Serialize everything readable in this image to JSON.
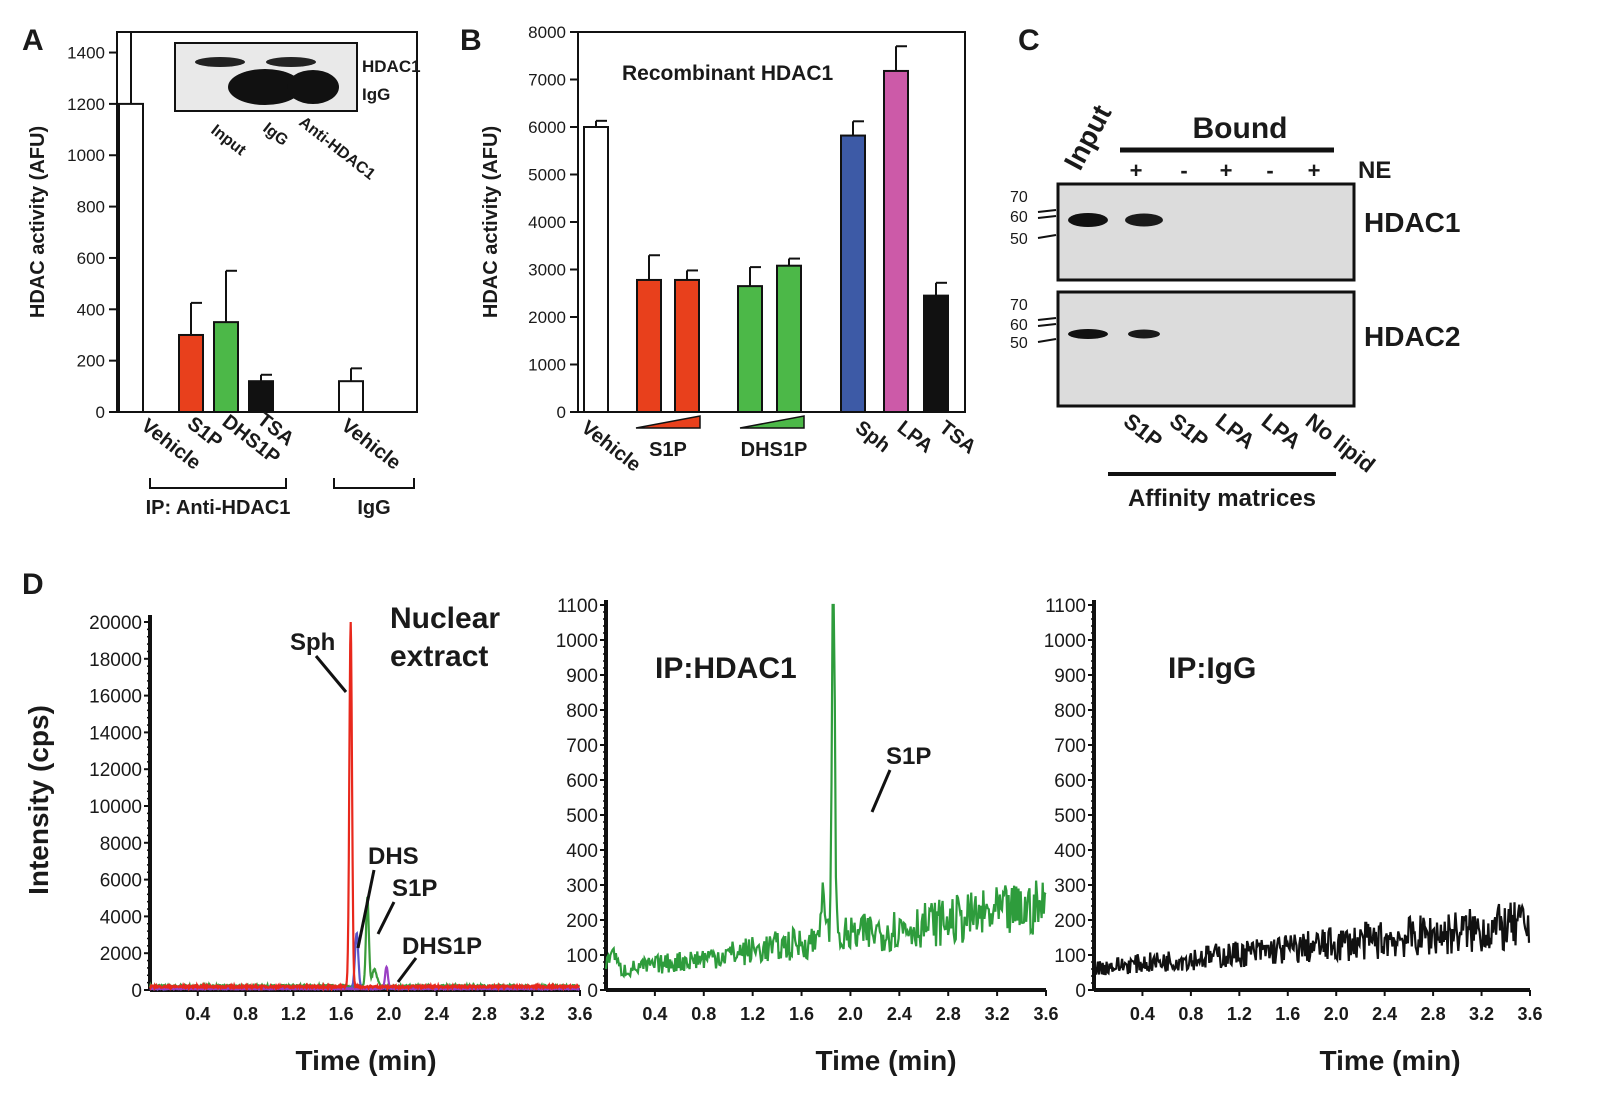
{
  "panels": {
    "A": {
      "letter": "A",
      "ylabel": "HDAC activity (AFU)",
      "yticks": [
        0,
        200,
        400,
        600,
        800,
        1000,
        1200,
        1400
      ],
      "ylim": [
        0,
        1480
      ],
      "bars": [
        {
          "label": "Vehicle",
          "value": 1200,
          "err": 1480,
          "color": "#ffffff"
        },
        {
          "label": "S1P",
          "value": 300,
          "err": 425,
          "color": "#e8401c"
        },
        {
          "label": "DHS1P",
          "value": 350,
          "err": 550,
          "color": "#4cb848"
        },
        {
          "label": "TSA",
          "value": 120,
          "err": 145,
          "color": "#111111"
        },
        {
          "label": "Vehicle",
          "value": 120,
          "err": 170,
          "color": "#ffffff"
        }
      ],
      "group1_label": "IP: Anti-HDAC1",
      "group2_label": "IgG",
      "inset": {
        "band1": "HDAC1",
        "band2": "IgG",
        "lanes": [
          "Input",
          "IgG",
          "Anti-HDAC1"
        ]
      }
    },
    "B": {
      "letter": "B",
      "title": "Recombinant  HDAC1",
      "ylabel": "HDAC activity (AFU)",
      "yticks": [
        0,
        1000,
        2000,
        3000,
        4000,
        5000,
        6000,
        7000,
        8000
      ],
      "ylim": [
        0,
        8000
      ],
      "bars": [
        {
          "label": "Vehicle",
          "value": 6000,
          "err": 6130,
          "color": "#ffffff"
        },
        {
          "label": "",
          "value": 2780,
          "err": 3300,
          "color": "#e8401c"
        },
        {
          "label": "",
          "value": 2780,
          "err": 2980,
          "color": "#e8401c"
        },
        {
          "label": "",
          "value": 2650,
          "err": 3050,
          "color": "#4cb848"
        },
        {
          "label": "",
          "value": 3080,
          "err": 3230,
          "color": "#4cb848"
        },
        {
          "label": "Sph",
          "value": 5820,
          "err": 6120,
          "color": "#3d5aa6"
        },
        {
          "label": "LPA",
          "value": 7180,
          "err": 7700,
          "color": "#cc5aa8"
        },
        {
          "label": "TSA",
          "value": 2450,
          "err": 2720,
          "color": "#111111"
        }
      ],
      "group_s1p": "S1P",
      "group_dhs1p": "DHS1P"
    },
    "C": {
      "letter": "C",
      "bound": "Bound",
      "ne": "NE",
      "input": "Input",
      "signs": [
        "+",
        "-",
        "+",
        "-",
        "+"
      ],
      "blot1": "HDAC1",
      "blot2": "HDAC2",
      "mw": [
        "70",
        "60",
        "50"
      ],
      "lanes": [
        "S1P",
        "S1P",
        "LPA",
        "LPA",
        "No lipid"
      ],
      "matrices": "Affinity matrices"
    },
    "D": {
      "letter": "D",
      "ylabel": "Intensity (cps)",
      "xlabel": "Time (min)",
      "xticks": [
        "0.4",
        "0.8",
        "1.2",
        "1.6",
        "2.0",
        "2.4",
        "2.8",
        "3.2",
        "3.6"
      ],
      "sub1": {
        "title1": "Nuclear",
        "title2": "extract",
        "yticks": [
          "0",
          "2000",
          "4000",
          "6000",
          "8000",
          "10000",
          "12000",
          "14000",
          "16000",
          "18000",
          "20000"
        ],
        "labels": {
          "sph": "Sph",
          "dhs": "DHS",
          "s1p": "S1P",
          "dhs1p": "DHS1P"
        }
      },
      "sub2": {
        "title": "IP:HDAC1",
        "yticks": [
          "0",
          "100",
          "200",
          "300",
          "400",
          "500",
          "600",
          "700",
          "800",
          "900",
          "1000",
          "1100"
        ],
        "labels": {
          "s1p": "S1P"
        }
      },
      "sub3": {
        "title": "IP:IgG",
        "yticks": [
          "0",
          "100",
          "200",
          "300",
          "400",
          "500",
          "600",
          "700",
          "800",
          "900",
          "1000",
          "1100"
        ]
      }
    }
  },
  "chart_data": [
    {
      "type": "bar",
      "panel": "A",
      "ylabel": "HDAC activity (AFU)",
      "categories": [
        "Vehicle",
        "S1P",
        "DHS1P",
        "TSA",
        "Vehicle"
      ],
      "values": [
        1200,
        300,
        350,
        120,
        120
      ],
      "ylim": [
        0,
        1480
      ]
    },
    {
      "type": "bar",
      "panel": "B",
      "title": "Recombinant  HDAC1",
      "ylabel": "HDAC activity (AFU)",
      "categories": [
        "Vehicle",
        "S1P",
        "S1P",
        "DHS1P",
        "DHS1P",
        "Sph",
        "LPA",
        "TSA"
      ],
      "values": [
        6000,
        2780,
        2780,
        2650,
        3080,
        5820,
        7180,
        2450
      ],
      "ylim": [
        0,
        8000
      ]
    },
    {
      "type": "line",
      "panel": "D",
      "title": "Nuclear extract",
      "xlabel": "Time (min)",
      "ylabel": "Intensity (cps)",
      "xlim": [
        0,
        3.6
      ],
      "ylim": [
        0,
        20000
      ],
      "series": [
        {
          "name": "Sph",
          "peak_x": 1.68,
          "peak_y": 20000
        },
        {
          "name": "DHS",
          "peak_x": 1.72,
          "peak_y": 3000
        },
        {
          "name": "S1P",
          "peak_x": 1.82,
          "peak_y": 4800
        },
        {
          "name": "DHS1P",
          "peak_x": 1.98,
          "peak_y": 1200
        }
      ]
    },
    {
      "type": "line",
      "panel": "D",
      "title": "IP:HDAC1",
      "xlabel": "Time (min)",
      "xlim": [
        0,
        3.6
      ],
      "ylim": [
        0,
        1100
      ],
      "series": [
        {
          "name": "S1P",
          "peak_x": 1.86,
          "peak_y": 1100
        }
      ]
    },
    {
      "type": "line",
      "panel": "D",
      "title": "IP:IgG",
      "xlabel": "Time (min)",
      "xlim": [
        0,
        3.6
      ],
      "ylim": [
        0,
        1100
      ]
    }
  ]
}
